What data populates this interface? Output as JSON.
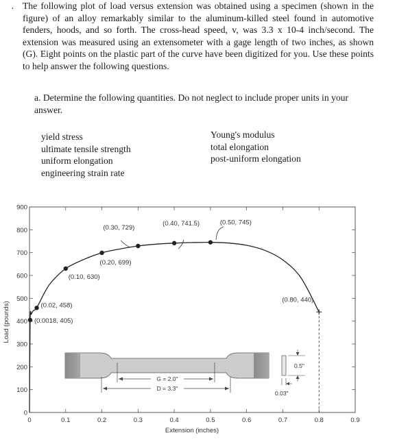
{
  "bullet": "·",
  "problem_text": "The following plot of load versus extension was obtained using a specimen (shown in the figure) of an alloy remarkably similar to the aluminum-killed steel found in automotive fenders, hoods, and so forth. The cross-head speed, v, was 3.3 x 10-4 inch/second. The extension was measured using an extensometer with a gage length of two inches, as shown (G). Eight points on the plastic part of the curve have been digitized for you. Use these points to help answer the following questions.",
  "part_a": {
    "label": "a.",
    "text": "Determine the following quantities. Do not neglect to include proper units in your answer."
  },
  "quantities_left": [
    "yield stress",
    "ultimate tensile strength",
    "uniform elongation",
    "engineering strain rate"
  ],
  "quantities_right": [
    "Young's modulus",
    "total elongation",
    "post-uniform elongation"
  ],
  "chart_data": {
    "type": "line",
    "xlabel": "Extension  (inches)",
    "ylabel": "Load  (pounds)",
    "xlim": [
      0,
      0.9
    ],
    "ylim": [
      0,
      900
    ],
    "x_ticks": [
      "0",
      "0.1",
      "0.2",
      "0.3",
      "0.4",
      "0.5",
      "0.6",
      "0.7",
      "0.8",
      "0.9"
    ],
    "y_ticks": [
      "0",
      "100",
      "200",
      "300",
      "400",
      "500",
      "600",
      "700",
      "800",
      "900"
    ],
    "curve": [
      [
        0,
        0
      ],
      [
        0.0018,
        405
      ],
      [
        0.005,
        430
      ],
      [
        0.01,
        445
      ],
      [
        0.02,
        458
      ],
      [
        0.04,
        520
      ],
      [
        0.06,
        570
      ],
      [
        0.1,
        630
      ],
      [
        0.15,
        670
      ],
      [
        0.2,
        699
      ],
      [
        0.25,
        716
      ],
      [
        0.3,
        729
      ],
      [
        0.35,
        737
      ],
      [
        0.4,
        741.5
      ],
      [
        0.45,
        744
      ],
      [
        0.5,
        745
      ],
      [
        0.55,
        742
      ],
      [
        0.6,
        732
      ],
      [
        0.65,
        710
      ],
      [
        0.7,
        668
      ],
      [
        0.75,
        590
      ],
      [
        0.8,
        440
      ]
    ],
    "points": [
      {
        "x": 0.0018,
        "y": 405,
        "label": "(0.0018, 405)"
      },
      {
        "x": 0.02,
        "y": 458,
        "label": "(0.02, 458)"
      },
      {
        "x": 0.1,
        "y": 630,
        "label": "(0.10, 630)"
      },
      {
        "x": 0.2,
        "y": 699,
        "label": "(0.20, 699)"
      },
      {
        "x": 0.3,
        "y": 729,
        "label": "(0.30, 729)"
      },
      {
        "x": 0.4,
        "y": 741.5,
        "label": "(0.40, 741.5)"
      },
      {
        "x": 0.5,
        "y": 745,
        "label": "(0.50, 745)"
      },
      {
        "x": 0.8,
        "y": 440,
        "label": "(0.80, 440)"
      }
    ],
    "specimen": {
      "gage_label": "G = 2.0\"",
      "length_label": "D = 3.3\"",
      "width_label": "0.5\"",
      "thickness_label": "0.03\""
    }
  }
}
